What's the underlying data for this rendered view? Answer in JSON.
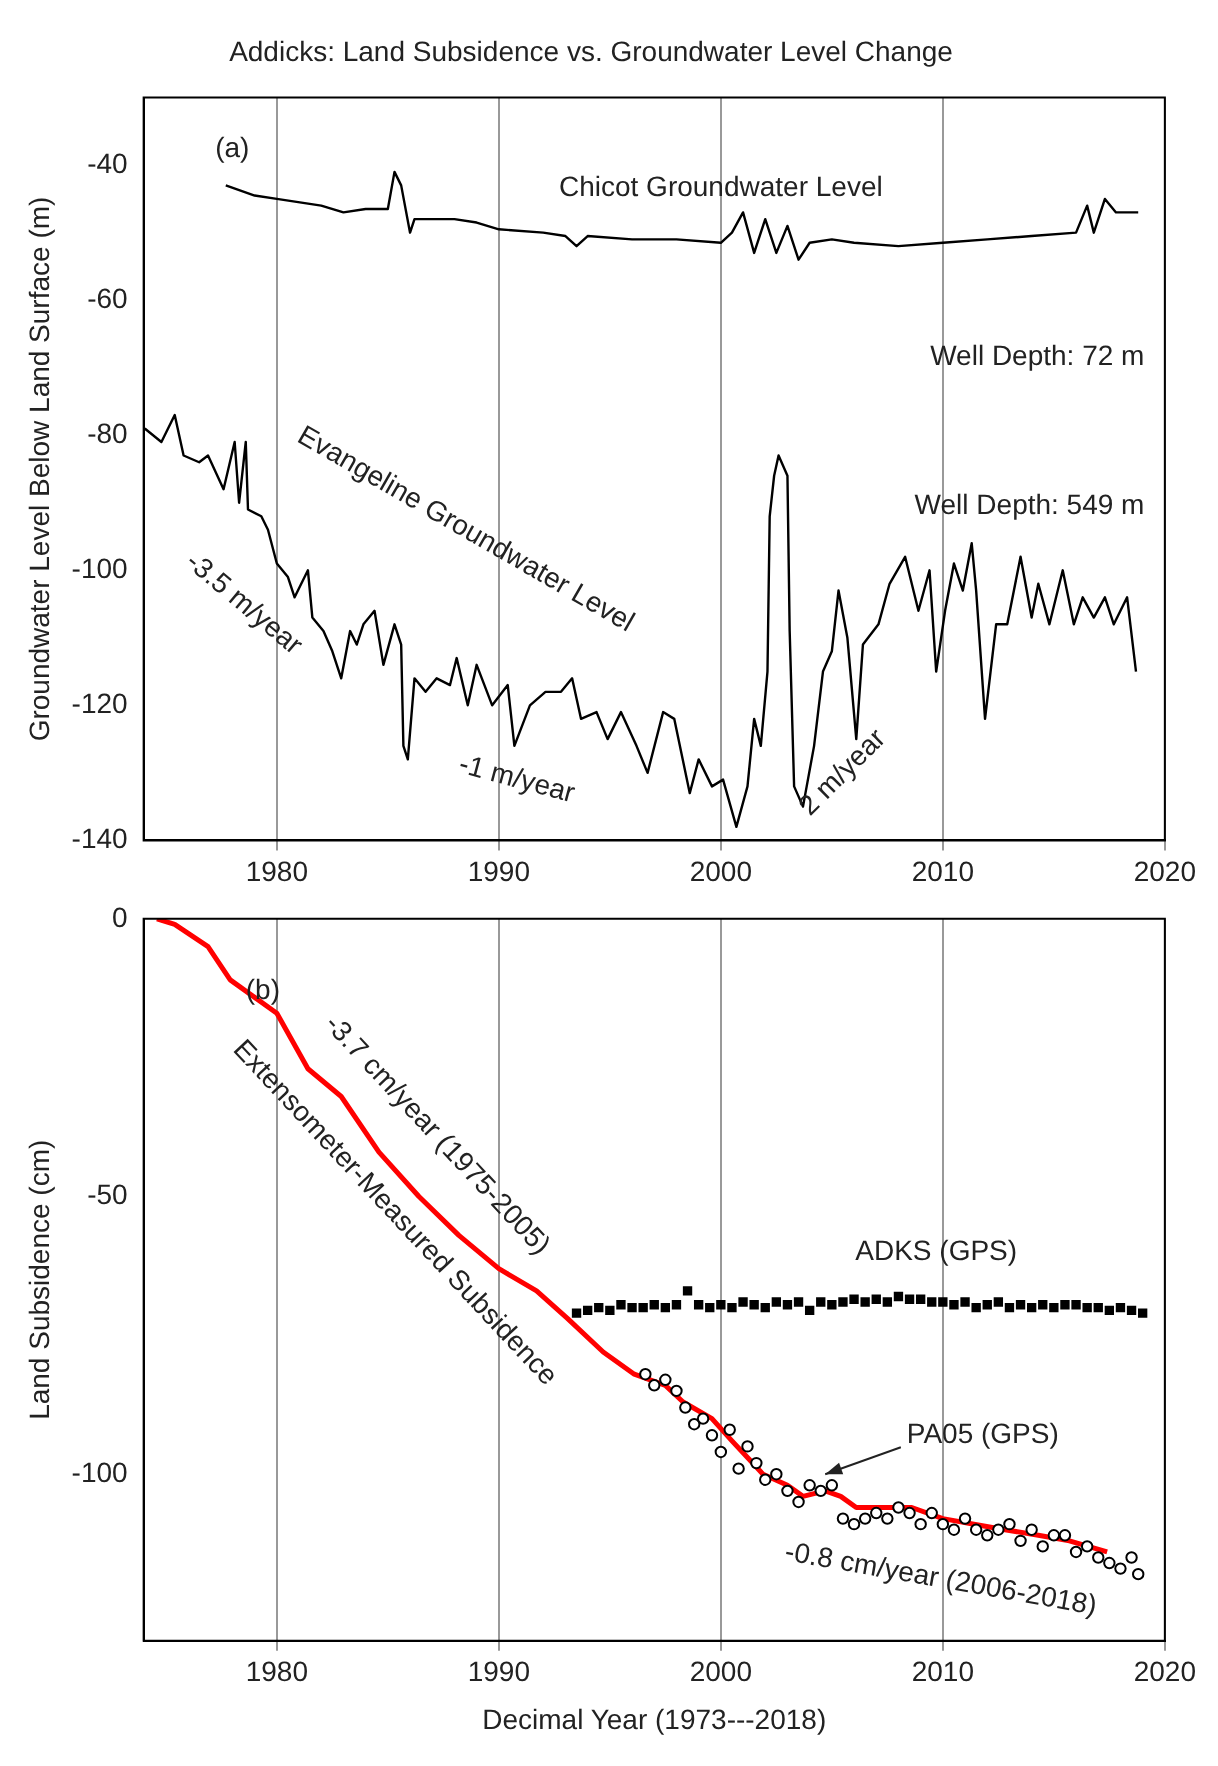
{
  "chart_data": [
    {
      "type": "line",
      "title": "Addicks: Land Subsidence vs. Groundwater Level Change",
      "ylabel": "Groundwater Level Below Land Surface (m)",
      "xlim": [
        1974,
        2020
      ],
      "xticks": [
        1980,
        1990,
        2000,
        2010,
        2020
      ],
      "ylim": [
        -140,
        -30
      ],
      "yticks": [
        -140,
        -120,
        -100,
        -80,
        -60,
        -40
      ],
      "grid": "x",
      "legend": false,
      "annotations": [
        "(a)",
        "Well Depth: 72 m",
        "Well Depth: 549 m",
        "-3.5 m/year",
        "-1 m/year",
        "2 m/year"
      ],
      "series": [
        {
          "name": "Chicot Groundwater Level",
          "color": "#000000",
          "x": [
            1977.7,
            1979,
            1980,
            1982,
            1983,
            1984,
            1985,
            1985.3,
            1985.6,
            1986,
            1986.2,
            1988,
            1989,
            1990,
            1992,
            1993,
            1993.5,
            1994,
            1996,
            1998,
            2000,
            2000.5,
            2001,
            2001.5,
            2002,
            2002.5,
            2003,
            2003.5,
            2004,
            2005,
            2006,
            2008,
            2010,
            2012,
            2014,
            2016,
            2016.5,
            2016.8,
            2017.3,
            2017.8,
            2018.8
          ],
          "values": [
            -43,
            -44.5,
            -45,
            -46,
            -47,
            -46.5,
            -46.5,
            -41,
            -43,
            -50,
            -48,
            -48,
            -48.5,
            -49.5,
            -50,
            -50.5,
            -52,
            -50.5,
            -51,
            -51,
            -51.5,
            -50,
            -47,
            -53,
            -48,
            -53,
            -49,
            -54,
            -51.5,
            -51,
            -51.5,
            -52,
            -51.5,
            -51,
            -50.5,
            -50,
            -46,
            -50,
            -45,
            -47,
            -47
          ]
        },
        {
          "name": "Evangeline Groundwater Level",
          "color": "#000000",
          "x": [
            1974.05,
            1974.8,
            1975.4,
            1975.8,
            1976.5,
            1976.9,
            1977.6,
            1978.1,
            1978.3,
            1978.6,
            1978.7,
            1979.3,
            1979.6,
            1980,
            1980.5,
            1980.8,
            1981.4,
            1981.6,
            1982.1,
            1982.5,
            1982.9,
            1983.3,
            1983.6,
            1983.9,
            1984.4,
            1984.8,
            1985.3,
            1985.6,
            1985.7,
            1985.9,
            1986.2,
            1986.7,
            1987.2,
            1987.8,
            1988.1,
            1988.6,
            1989,
            1989.7,
            1990.4,
            1990.7,
            1991.4,
            1992.1,
            1992.8,
            1993.3,
            1993.7,
            1994.4,
            1994.9,
            1995.5,
            1996.2,
            1996.7,
            1997.4,
            1997.9,
            1998.6,
            1999,
            1999.6,
            2000.1,
            2000.7,
            2001.2,
            2001.5,
            2001.8,
            2002.1,
            2002.2,
            2002.4,
            2002.6,
            2003,
            2003.1,
            2003.3,
            2003.7,
            2004.2,
            2004.6,
            2005,
            2005.3,
            2005.7,
            2006.1,
            2006.4,
            2007.1,
            2007.6,
            2008.3,
            2008.9,
            2009.4,
            2009.7,
            2010.1,
            2010.5,
            2010.9,
            2011.3,
            2011.5,
            2011.9,
            2012.4,
            2012.9,
            2013.5,
            2014,
            2014.3,
            2014.8,
            2015.4,
            2015.9,
            2016.3,
            2016.8,
            2017.3,
            2017.7,
            2018.3,
            2018.7
          ],
          "values": [
            -79,
            -81,
            -77,
            -83,
            -84,
            -83,
            -88,
            -81,
            -90,
            -81,
            -91,
            -92,
            -94,
            -99,
            -101,
            -104,
            -100,
            -107,
            -109,
            -112,
            -116,
            -109,
            -111,
            -108,
            -106,
            -114,
            -108,
            -111,
            -126,
            -128,
            -116,
            -118,
            -116,
            -117,
            -113,
            -120,
            -114,
            -120,
            -117,
            -126,
            -120,
            -118,
            -118,
            -116,
            -122,
            -121,
            -125,
            -121,
            -126,
            -130,
            -121,
            -122,
            -133,
            -128,
            -132,
            -131,
            -138,
            -132,
            -122,
            -126,
            -115,
            -92,
            -86,
            -83,
            -86,
            -109,
            -132,
            -135,
            -126,
            -115,
            -112,
            -103,
            -110,
            -125,
            -111,
            -108,
            -102,
            -98,
            -106,
            -100,
            -115,
            -106,
            -99,
            -103,
            -96,
            -103,
            -122,
            -108,
            -108,
            -98,
            -107,
            -102,
            -108,
            -100,
            -108,
            -104,
            -107,
            -104,
            -108,
            -104,
            -115
          ]
        }
      ]
    },
    {
      "type": "line",
      "xlabel": "Decimal Year (1973---2018)",
      "ylabel": "Land Subsidence (cm)",
      "xlim": [
        1974,
        2020
      ],
      "xticks": [
        1980,
        1990,
        2000,
        2010,
        2020
      ],
      "ylim": [
        -130,
        0
      ],
      "yticks": [
        -100,
        -50,
        0
      ],
      "grid": "x",
      "legend": false,
      "annotations": [
        "(b)",
        "-3.7 cm/year (1975-2005)",
        "-0.8 cm/year (2006-2018)"
      ],
      "series": [
        {
          "name": "Extensometer-Measured Subsidence",
          "color": "#ff0000",
          "x": [
            1974.6,
            1975.4,
            1976.9,
            1977.9,
            1980,
            1981.4,
            1982.9,
            1984.6,
            1986.4,
            1988.2,
            1990,
            1991.7,
            1993.1,
            1994.7,
            1996.1,
            1997.5,
            1998.3,
            1999.6,
            2000.5,
            2001.2,
            2001.9,
            2003,
            2003.7,
            2004.7,
            2005.4,
            2006.1,
            2007.5,
            2008.6,
            2010,
            2011.4,
            2012.8,
            2014.3,
            2015.7,
            2017.4
          ],
          "values": [
            0,
            -1,
            -5,
            -11,
            -17,
            -27,
            -32,
            -42,
            -50,
            -57,
            -63,
            -67,
            -72,
            -78,
            -82,
            -84,
            -87,
            -90,
            -94,
            -97,
            -100,
            -102,
            -104,
            -103,
            -104,
            -106,
            -106,
            -106,
            -108,
            -109,
            -110,
            -111,
            -112,
            -114
          ]
        },
        {
          "name": "ADKS (GPS)",
          "color": "#000000",
          "type": "scatter",
          "marker": "square",
          "x": [
            1993.5,
            1994,
            1994.5,
            1995,
            1995.5,
            1996,
            1996.5,
            1997,
            1997.5,
            1998,
            1998.5,
            1999,
            1999.5,
            2000,
            2000.5,
            2001,
            2001.5,
            2002,
            2002.5,
            2003,
            2003.5,
            2004,
            2004.5,
            2005,
            2005.5,
            2006,
            2006.5,
            2007,
            2007.5,
            2008,
            2008.5,
            2009,
            2009.5,
            2010,
            2010.5,
            2011,
            2011.5,
            2012,
            2012.5,
            2013,
            2013.5,
            2014,
            2014.5,
            2015,
            2015.5,
            2016,
            2016.5,
            2017,
            2017.5,
            2018,
            2018.5,
            2019
          ],
          "values": [
            -71,
            -70.5,
            -70,
            -70.5,
            -69.5,
            -70,
            -70,
            -69.5,
            -70,
            -69.5,
            -67,
            -69.5,
            -70,
            -69.5,
            -70,
            -69,
            -69.5,
            -70,
            -69,
            -69.5,
            -69,
            -70.5,
            -69,
            -69.5,
            -69,
            -68.5,
            -69,
            -68.5,
            -69,
            -68,
            -68.5,
            -68.5,
            -69,
            -69,
            -69.5,
            -69,
            -70,
            -69.5,
            -69,
            -70,
            -69.5,
            -70,
            -69.5,
            -70,
            -69.5,
            -69.5,
            -70,
            -70,
            -70.5,
            -70,
            -70.5,
            -71
          ]
        },
        {
          "name": "PA05 (GPS)",
          "color": "#000000",
          "type": "scatter",
          "marker": "circle",
          "x": [
            1996.6,
            1997,
            1997.5,
            1998,
            1998.4,
            1998.8,
            1999.2,
            1999.6,
            2000,
            2000.4,
            2000.8,
            2001.2,
            2001.6,
            2002,
            2002.5,
            2003,
            2003.5,
            2004,
            2004.5,
            2005,
            2005.5,
            2006,
            2006.5,
            2007,
            2007.5,
            2008,
            2008.5,
            2009,
            2009.5,
            2010,
            2010.5,
            2011,
            2011.5,
            2012,
            2012.5,
            2013,
            2013.5,
            2014,
            2014.5,
            2015,
            2015.5,
            2016,
            2016.5,
            2017,
            2017.5,
            2018,
            2018.5,
            2018.8
          ],
          "values": [
            -82,
            -84,
            -83,
            -85,
            -88,
            -91,
            -90,
            -93,
            -96,
            -92,
            -99,
            -95,
            -98,
            -101,
            -100,
            -103,
            -105,
            -102,
            -103,
            -102,
            -108,
            -109,
            -108,
            -107,
            -108,
            -106,
            -107,
            -109,
            -107,
            -109,
            -110,
            -108,
            -110,
            -111,
            -110,
            -109,
            -112,
            -110,
            -113,
            -111,
            -111,
            -114,
            -113,
            -115,
            -116,
            -117,
            -115,
            -118
          ]
        }
      ]
    }
  ]
}
